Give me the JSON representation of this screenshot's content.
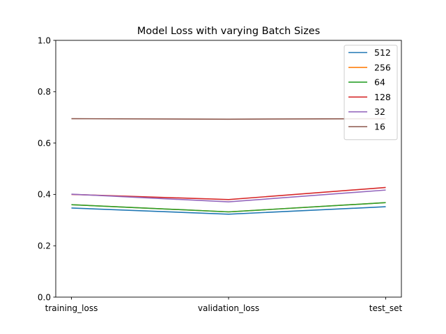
{
  "chart_data": {
    "type": "line",
    "title": "Model Loss with varying Batch Sizes",
    "xlabel": "",
    "ylabel": "",
    "categories": [
      "training_loss",
      "validation_loss",
      "test_set"
    ],
    "ylim": [
      0,
      1.0
    ],
    "yticks": [
      0.0,
      0.2,
      0.4,
      0.6,
      0.8,
      1.0
    ],
    "ytick_labels": [
      "0.0",
      "0.2",
      "0.4",
      "0.6",
      "0.8",
      "1.0"
    ],
    "grid": false,
    "legend_position": "top-right",
    "series": [
      {
        "name": "512",
        "color": "#1f77b4",
        "values": [
          0.347,
          0.323,
          0.352
        ]
      },
      {
        "name": "256",
        "color": "#ff7f0e",
        "values": [
          0.36,
          0.332,
          0.368
        ]
      },
      {
        "name": "64",
        "color": "#2ca02c",
        "values": [
          0.36,
          0.332,
          0.368
        ]
      },
      {
        "name": "128",
        "color": "#d62728",
        "values": [
          0.4,
          0.38,
          0.427
        ]
      },
      {
        "name": "32",
        "color": "#9467bd",
        "values": [
          0.401,
          0.371,
          0.417
        ]
      },
      {
        "name": "16",
        "color": "#8c564b",
        "values": [
          0.695,
          0.693,
          0.695
        ]
      }
    ]
  }
}
